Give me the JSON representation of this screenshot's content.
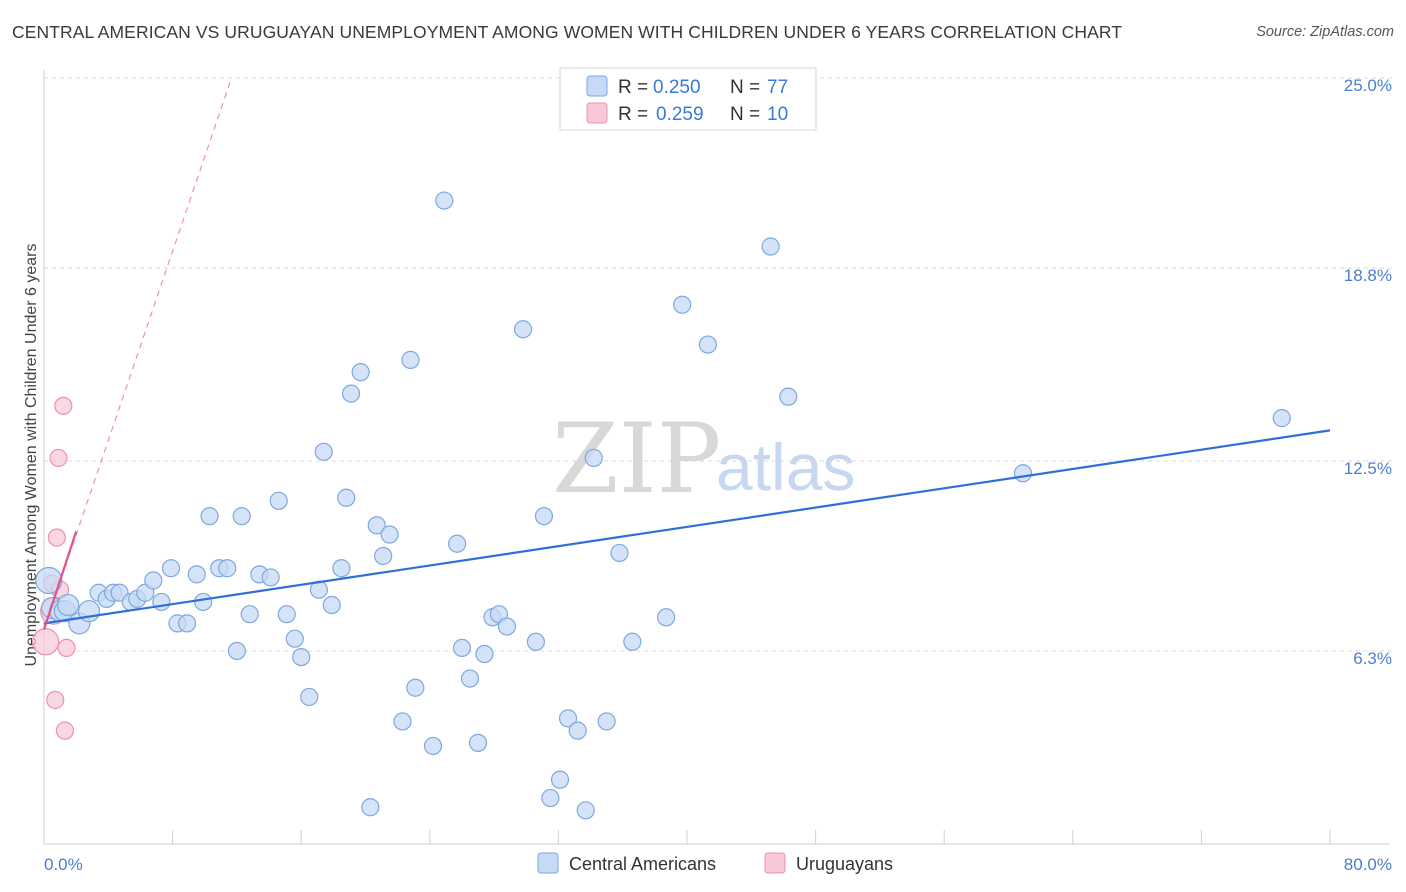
{
  "header": {
    "title": "CENTRAL AMERICAN VS URUGUAYAN UNEMPLOYMENT AMONG WOMEN WITH CHILDREN UNDER 6 YEARS CORRELATION CHART",
    "source": "Source: ZipAtlas.com"
  },
  "watermark": {
    "zip": "ZIP",
    "atlas": "atlas"
  },
  "legend": {
    "rows": [
      {
        "r_label": "R =",
        "r_value": "0.250",
        "n_label": "N =",
        "n_value": "77"
      },
      {
        "r_label": "R =",
        "r_value": "0.259",
        "n_label": "N =",
        "n_value": "10"
      }
    ]
  },
  "colors": {
    "blue_fill": "#c6daf5",
    "blue_stroke": "#7ea8de",
    "blue_line": "#2f6fd6",
    "pink_fill": "#f8c8d6",
    "pink_stroke": "#ec92b0",
    "pink_line": "#e0558a",
    "grid": "#d9d9d9",
    "accent_text": "#4a7fd0"
  },
  "chart_data": {
    "type": "scatter",
    "title": "CENTRAL AMERICAN VS URUGUAYAN UNEMPLOYMENT AMONG WOMEN WITH CHILDREN UNDER 6 YEARS CORRELATION CHART",
    "xlabel": "",
    "ylabel": "Unemployment Among Women with Children Under 6 years",
    "xlim": [
      0,
      80
    ],
    "ylim": [
      0,
      25
    ],
    "x_tick_labels": [
      "0.0%",
      "80.0%"
    ],
    "y_ticks": [
      6.3,
      12.5,
      18.8,
      25.0
    ],
    "y_tick_labels": [
      "6.3%",
      "12.5%",
      "18.8%",
      "25.0%"
    ],
    "grid": "horizontal dashed",
    "legend_position": "top-center",
    "series": [
      {
        "name": "Central Americans",
        "R": 0.25,
        "N": 77,
        "trend": {
          "x": [
            0,
            80
          ],
          "y": [
            7.2,
            13.5
          ]
        },
        "points": [
          [
            0.3,
            8.6
          ],
          [
            0.5,
            7.7
          ],
          [
            1.0,
            7.6
          ],
          [
            1.3,
            7.6
          ],
          [
            1.5,
            7.8
          ],
          [
            2.2,
            7.2
          ],
          [
            2.8,
            7.6
          ],
          [
            3.4,
            8.2
          ],
          [
            3.9,
            8.0
          ],
          [
            4.3,
            8.2
          ],
          [
            4.7,
            8.2
          ],
          [
            5.4,
            7.9
          ],
          [
            5.8,
            8.0
          ],
          [
            6.3,
            8.2
          ],
          [
            6.8,
            8.6
          ],
          [
            7.3,
            7.9
          ],
          [
            7.9,
            9.0
          ],
          [
            8.3,
            7.2
          ],
          [
            8.9,
            7.2
          ],
          [
            9.5,
            8.8
          ],
          [
            9.9,
            7.9
          ],
          [
            10.3,
            10.7
          ],
          [
            10.9,
            9.0
          ],
          [
            11.4,
            9.0
          ],
          [
            12.0,
            6.3
          ],
          [
            12.3,
            10.7
          ],
          [
            12.8,
            7.5
          ],
          [
            13.4,
            8.8
          ],
          [
            14.1,
            8.7
          ],
          [
            14.6,
            11.2
          ],
          [
            15.1,
            7.5
          ],
          [
            15.6,
            6.7
          ],
          [
            16.0,
            6.1
          ],
          [
            16.5,
            4.8
          ],
          [
            17.1,
            8.3
          ],
          [
            17.4,
            12.8
          ],
          [
            17.9,
            7.8
          ],
          [
            18.5,
            9.0
          ],
          [
            18.8,
            11.3
          ],
          [
            19.1,
            14.7
          ],
          [
            19.7,
            15.4
          ],
          [
            20.3,
            1.2
          ],
          [
            20.7,
            10.4
          ],
          [
            21.1,
            9.4
          ],
          [
            21.5,
            10.1
          ],
          [
            22.3,
            4.0
          ],
          [
            22.8,
            15.8
          ],
          [
            23.1,
            5.1
          ],
          [
            24.2,
            3.2
          ],
          [
            24.9,
            21.0
          ],
          [
            25.7,
            9.8
          ],
          [
            26.0,
            6.4
          ],
          [
            26.5,
            5.4
          ],
          [
            27.0,
            3.3
          ],
          [
            27.4,
            6.2
          ],
          [
            27.9,
            7.4
          ],
          [
            28.3,
            7.5
          ],
          [
            28.8,
            7.1
          ],
          [
            29.8,
            16.8
          ],
          [
            30.6,
            6.6
          ],
          [
            31.1,
            10.7
          ],
          [
            31.5,
            1.5
          ],
          [
            32.1,
            2.1
          ],
          [
            32.6,
            4.1
          ],
          [
            33.2,
            3.7
          ],
          [
            33.7,
            1.1
          ],
          [
            34.2,
            12.6
          ],
          [
            35.0,
            4.0
          ],
          [
            35.8,
            9.5
          ],
          [
            36.6,
            6.6
          ],
          [
            38.7,
            7.4
          ],
          [
            39.7,
            17.6
          ],
          [
            41.3,
            16.3
          ],
          [
            45.2,
            19.5
          ],
          [
            46.3,
            14.6
          ],
          [
            60.9,
            12.1
          ],
          [
            77.0,
            13.9
          ]
        ]
      },
      {
        "name": "Uruguayans",
        "R": 0.259,
        "N": 10,
        "trend_solid": {
          "x": [
            0,
            2
          ],
          "y": [
            7.0,
            10.2
          ]
        },
        "trend_dashed": {
          "x": [
            0,
            11.6
          ],
          "y": [
            7.0,
            24.9
          ]
        },
        "points": [
          [
            0.1,
            6.6
          ],
          [
            0.5,
            8.5
          ],
          [
            0.6,
            7.6
          ],
          [
            0.7,
            4.7
          ],
          [
            0.8,
            10.0
          ],
          [
            0.9,
            12.6
          ],
          [
            1.2,
            14.3
          ],
          [
            1.3,
            3.7
          ],
          [
            1.4,
            6.4
          ],
          [
            1.0,
            8.3
          ]
        ]
      }
    ]
  },
  "bottom_legend": {
    "items": [
      "Central Americans",
      "Uruguayans"
    ]
  }
}
